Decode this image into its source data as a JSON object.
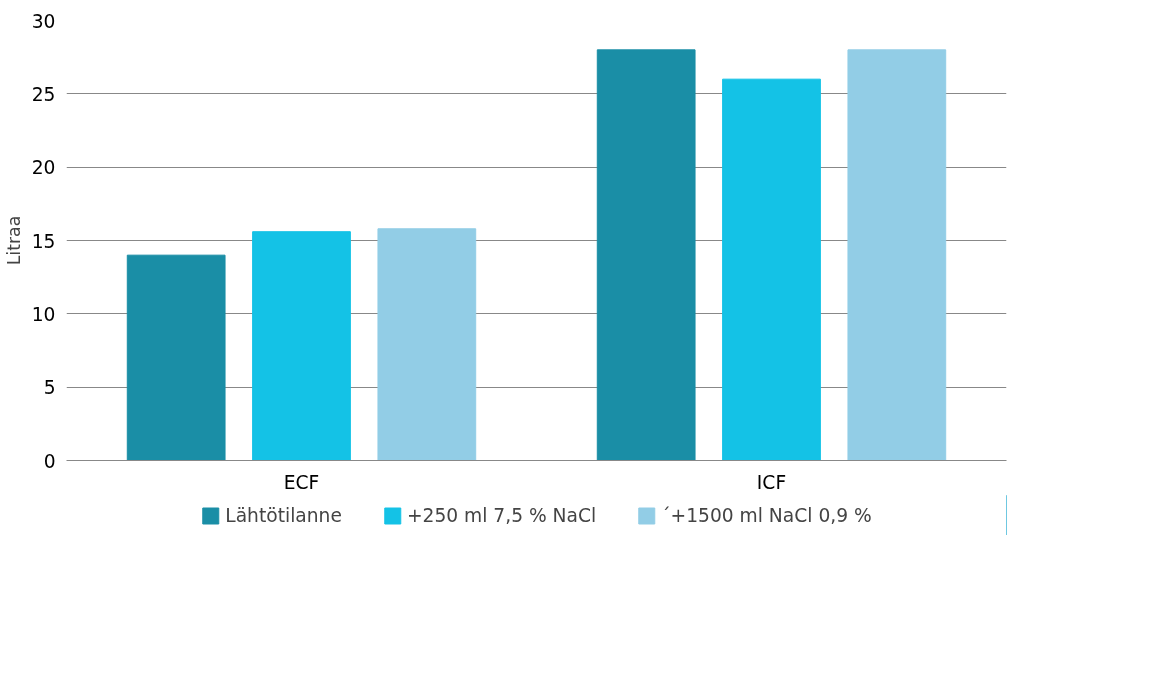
{
  "chart_data": {
    "type": "bar",
    "ylabel": "Litraa",
    "categories": [
      "ECF",
      "ICF"
    ],
    "series": [
      {
        "name": "Lähtötilanne",
        "color": "#1a8ea6",
        "values": [
          14,
          28
        ]
      },
      {
        "name": "+250 ml 7,5 % NaCl",
        "color": "#14c2e6",
        "values": [
          15.6,
          26
        ]
      },
      {
        "name": "´+1500 ml NaCl 0,9 %",
        "color": "#92cde6",
        "values": [
          15.8,
          28
        ]
      }
    ],
    "ylim": [
      0,
      30
    ],
    "yticks": [
      0,
      5,
      10,
      15,
      20,
      25,
      30
    ],
    "grid": "y",
    "legend": "bottom"
  }
}
